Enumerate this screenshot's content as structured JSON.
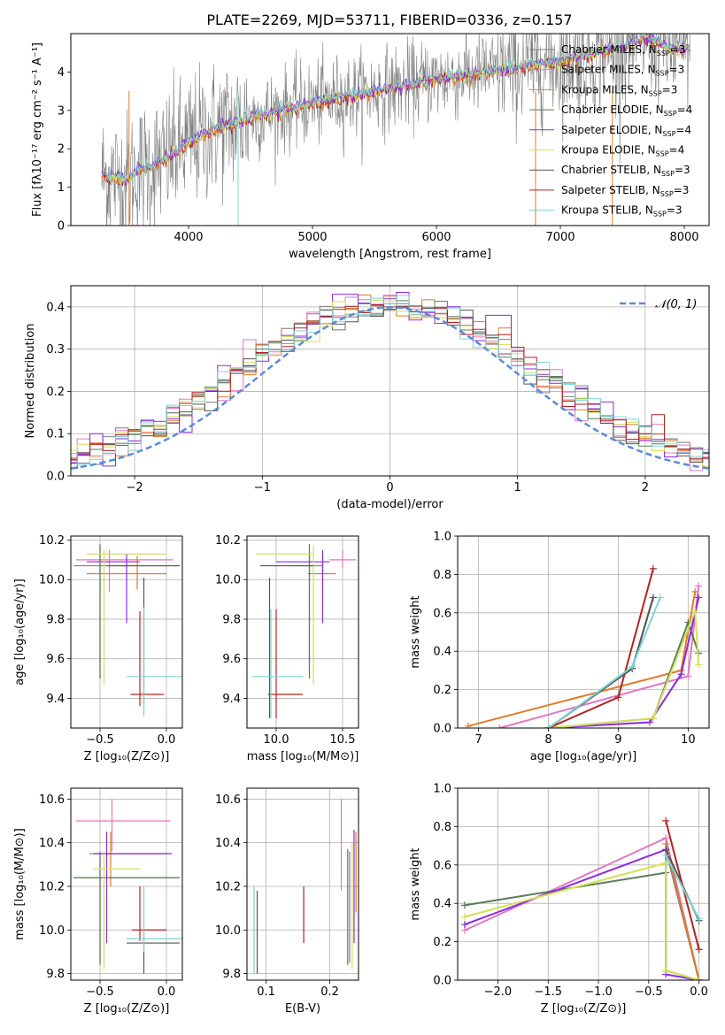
{
  "title": "PLATE=2269, MJD=53711, FIBERID=0336, z=0.157",
  "colors": {
    "chabrier_miles": "#7f7f7f",
    "salpeter_miles": "#e377c2",
    "kroupa_miles": "#e07b28",
    "chabrier_elodie": "#5a7d5a",
    "salpeter_elodie": "#8a2be2",
    "kroupa_elodie": "#d4e157",
    "chabrier_stelib": "#555555",
    "salpeter_stelib": "#b22222",
    "kroupa_stelib": "#7fd3d3",
    "normal_curve": "#5b8bd9"
  },
  "series_labels": [
    "Chabrier MILES, N_SSP=3",
    "Salpeter MILES, N_SSP=3",
    "Kroupa MILES, N_SSP=3",
    "Chabrier ELODIE, N_SSP=4",
    "Salpeter ELODIE, N_SSP=4",
    "Kroupa ELODIE, N_SSP=4",
    "Chabrier STELIB, N_SSP=3",
    "Salpeter STELIB, N_SSP=3",
    "Kroupa STELIB, N_SSP=3"
  ],
  "labels": {
    "spec_x": "wavelength [Angstrom, rest frame]",
    "spec_y": "Flux [fλ10⁻¹⁷ erg cm⁻² s⁻¹ A⁻¹]",
    "hist_x": "(data-model)/error",
    "hist_y": "Normed distribution",
    "hist_legend": "𝒩(0, 1)",
    "age_y": "age  [log₁₀(age/yr)]",
    "z_x": "Z [log₁₀(Z/Z⊙)]",
    "mass_x": "mass [log₁₀(M/M⊙)]",
    "mass_y": "mass [log₁₀(M/M⊙)]",
    "ebv_x": "E(B-V)",
    "mw_y": "mass weight",
    "age_x": "age  [log₁₀(age/yr)]"
  },
  "chart_data": [
    {
      "type": "line",
      "title": "PLATE=2269, MJD=53711, FIBERID=0336, z=0.157",
      "xlabel": "wavelength [Angstrom, rest frame]",
      "ylabel": "Flux [fλ10⁻¹⁷ erg cm⁻² s⁻¹ A⁻¹]",
      "xlim": [
        3050,
        8200
      ],
      "ylim": [
        0,
        5
      ],
      "xticks": [
        4000,
        5000,
        6000,
        7000,
        8000
      ],
      "yticks": [
        0,
        1,
        2,
        3,
        4
      ],
      "continuum": {
        "x": [
          3300,
          3500,
          3600,
          3800,
          4000,
          4200,
          4500,
          5000,
          5500,
          6000,
          6500,
          7000,
          7500,
          7700,
          7900
        ],
        "y": [
          1.3,
          1.2,
          1.45,
          1.7,
          2.15,
          2.5,
          2.8,
          3.2,
          3.5,
          3.8,
          4.05,
          4.3,
          4.65,
          4.9,
          4.6
        ]
      },
      "legend": "upper right"
    },
    {
      "type": "bar",
      "xlabel": "(data-model)/error",
      "ylabel": "Normed distribution",
      "xlim": [
        -2.5,
        2.5
      ],
      "ylim": [
        0,
        0.45
      ],
      "xticks": [
        -2,
        -1,
        0,
        1,
        2
      ],
      "yticks": [
        0.0,
        0.1,
        0.2,
        0.3,
        0.4
      ],
      "bin_width": 0.1,
      "curve": {
        "name": "N(0,1)",
        "mean": 0,
        "sigma": 1
      },
      "legend": "upper right"
    },
    {
      "type": "scatter",
      "name": "age_vs_Z",
      "xlabel": "Z [log10(Z/Zsun)]",
      "ylabel": "age [log10(age/yr)]",
      "xlim": [
        -0.72,
        0.12
      ],
      "ylim": [
        9.25,
        10.22
      ],
      "xticks": [
        -0.5,
        0.0
      ],
      "yticks": [
        9.4,
        9.6,
        9.8,
        10.0,
        10.2
      ],
      "points": [
        {
          "s": 0,
          "x": -0.5,
          "y": 10.07,
          "ex": [
            -0.7,
            0.08
          ],
          "ey": [
            9.5,
            10.18
          ]
        },
        {
          "s": 1,
          "x": -0.43,
          "y": 10.1,
          "ex": [
            -0.68,
            0.05
          ],
          "ey": [
            9.94,
            10.15
          ]
        },
        {
          "s": 2,
          "x": -0.22,
          "y": 10.03,
          "ex": [
            -0.6,
            0.0
          ],
          "ey": [
            9.95,
            10.12
          ]
        },
        {
          "s": 3,
          "x": -0.5,
          "y": 10.07,
          "ex": [
            -0.5,
            -0.5
          ],
          "ey": [
            9.5,
            10.17
          ]
        },
        {
          "s": 4,
          "x": -0.3,
          "y": 10.09,
          "ex": [
            -0.6,
            -0.2
          ],
          "ey": [
            9.78,
            10.13
          ]
        },
        {
          "s": 5,
          "x": -0.47,
          "y": 10.13,
          "ex": [
            -0.6,
            0.0
          ],
          "ey": [
            9.47,
            10.15
          ]
        },
        {
          "s": 6,
          "x": -0.17,
          "y": 10.07,
          "ex": [
            -0.45,
            0.1
          ],
          "ey": [
            9.37,
            10.01
          ]
        },
        {
          "s": 7,
          "x": -0.2,
          "y": 9.42,
          "ex": [
            -0.27,
            -0.02
          ],
          "ey": [
            9.36,
            9.84
          ]
        },
        {
          "s": 8,
          "x": -0.17,
          "y": 9.51,
          "ex": [
            -0.3,
            0.12
          ],
          "ey": [
            9.31,
            9.86
          ]
        }
      ]
    },
    {
      "type": "scatter",
      "name": "age_vs_mass",
      "xlabel": "mass [log10(M/Msun)]",
      "ylabel": "",
      "xlim": [
        9.78,
        10.62
      ],
      "ylim": [
        9.25,
        10.22
      ],
      "xticks": [
        10.0,
        10.5
      ],
      "yticks": [
        9.4,
        9.6,
        9.8,
        10.0,
        10.2
      ],
      "points": [
        {
          "s": 0,
          "x": 10.25,
          "y": 10.07,
          "ex": [
            10.1,
            10.35
          ],
          "ey": [
            9.55,
            10.15
          ]
        },
        {
          "s": 1,
          "x": 10.5,
          "y": 10.1,
          "ex": [
            10.4,
            10.6
          ],
          "ey": [
            10.06,
            10.15
          ]
        },
        {
          "s": 2,
          "x": 10.35,
          "y": 10.03,
          "ex": [
            10.24,
            10.45
          ],
          "ey": [
            9.96,
            10.12
          ]
        },
        {
          "s": 3,
          "x": 10.25,
          "y": 10.07,
          "ex": [
            10.25,
            10.25
          ],
          "ey": [
            9.5,
            10.18
          ]
        },
        {
          "s": 4,
          "x": 10.35,
          "y": 10.09,
          "ex": [
            10.0,
            10.4
          ],
          "ey": [
            9.78,
            10.15
          ]
        },
        {
          "s": 5,
          "x": 10.28,
          "y": 10.13,
          "ex": [
            9.85,
            10.28
          ],
          "ey": [
            9.47,
            10.17
          ]
        },
        {
          "s": 6,
          "x": 9.95,
          "y": 10.07,
          "ex": [
            9.88,
            10.28
          ],
          "ey": [
            9.3,
            10.01
          ]
        },
        {
          "s": 7,
          "x": 10.0,
          "y": 9.42,
          "ex": [
            9.94,
            10.2
          ],
          "ey": [
            9.3,
            9.85
          ]
        },
        {
          "s": 8,
          "x": 9.96,
          "y": 9.51,
          "ex": [
            9.82,
            10.2
          ],
          "ey": [
            9.3,
            9.85
          ]
        }
      ]
    },
    {
      "type": "line",
      "name": "mass_weight_vs_age",
      "xlabel": "age [log10(age/yr)]",
      "ylabel": "mass weight",
      "xlim": [
        6.7,
        10.3
      ],
      "ylim": [
        0,
        1
      ],
      "xticks": [
        7,
        8,
        9,
        10
      ],
      "yticks": [
        0.0,
        0.2,
        0.4,
        0.6,
        0.8,
        1.0
      ],
      "series": [
        {
          "s": 0,
          "x": [
            8.0,
            9.2,
            9.5
          ],
          "y": [
            0.0,
            0.31,
            0.68
          ]
        },
        {
          "s": 1,
          "x": [
            7.3,
            10.0,
            10.15
          ],
          "y": [
            0.0,
            0.27,
            0.74
          ]
        },
        {
          "s": 2,
          "x": [
            6.85,
            9.9,
            10.1
          ],
          "y": [
            0.01,
            0.3,
            0.71
          ]
        },
        {
          "s": 3,
          "x": [
            8.0,
            9.5,
            10.0,
            10.15
          ],
          "y": [
            0.0,
            0.05,
            0.55,
            0.39
          ]
        },
        {
          "s": 4,
          "x": [
            8.0,
            9.45,
            9.9,
            10.15
          ],
          "y": [
            0.0,
            0.03,
            0.28,
            0.68
          ]
        },
        {
          "s": 5,
          "x": [
            8.0,
            9.5,
            10.1,
            10.15
          ],
          "y": [
            0.0,
            0.05,
            0.61,
            0.33
          ]
        },
        {
          "s": 6,
          "x": [
            8.0,
            9.2,
            9.5
          ],
          "y": [
            0.0,
            0.31,
            0.68
          ]
        },
        {
          "s": 7,
          "x": [
            8.0,
            9.0,
            9.5
          ],
          "y": [
            0.0,
            0.16,
            0.83
          ]
        },
        {
          "s": 8,
          "x": [
            8.0,
            9.2,
            9.6
          ],
          "y": [
            0.0,
            0.32,
            0.68
          ]
        }
      ]
    },
    {
      "type": "scatter",
      "name": "mass_vs_Z",
      "xlabel": "Z [log10(Z/Zsun)]",
      "ylabel": "mass [log10(M/Msun)]",
      "xlim": [
        -0.72,
        0.12
      ],
      "ylim": [
        9.77,
        10.65
      ],
      "xticks": [
        -0.5,
        0.0
      ],
      "yticks": [
        9.8,
        10.0,
        10.2,
        10.4,
        10.6
      ],
      "points": [
        {
          "s": 0,
          "x": -0.5,
          "y": 10.24,
          "ex": [
            -0.7,
            0.08
          ],
          "ey": [
            9.85,
            10.36
          ]
        },
        {
          "s": 1,
          "x": -0.41,
          "y": 10.5,
          "ex": [
            -0.68,
            0.03
          ],
          "ey": [
            10.36,
            10.6
          ]
        },
        {
          "s": 2,
          "x": -0.42,
          "y": 10.35,
          "ex": [
            -0.58,
            0.0
          ],
          "ey": [
            10.2,
            10.45
          ]
        },
        {
          "s": 3,
          "x": -0.5,
          "y": 10.24,
          "ex": [
            -0.7,
            0.1
          ],
          "ey": [
            9.84,
            10.35
          ]
        },
        {
          "s": 4,
          "x": -0.45,
          "y": 10.35,
          "ex": [
            -0.55,
            0.04
          ],
          "ey": [
            9.94,
            10.45
          ]
        },
        {
          "s": 5,
          "x": -0.47,
          "y": 10.28,
          "ex": [
            -0.55,
            -0.2
          ],
          "ey": [
            9.82,
            10.36
          ]
        },
        {
          "s": 6,
          "x": -0.17,
          "y": 9.94,
          "ex": [
            -0.3,
            0.1
          ],
          "ey": [
            9.8,
            10.0
          ]
        },
        {
          "s": 7,
          "x": -0.2,
          "y": 10.0,
          "ex": [
            -0.26,
            0.0
          ],
          "ey": [
            9.95,
            10.2
          ]
        },
        {
          "s": 8,
          "x": -0.17,
          "y": 9.96,
          "ex": [
            -0.3,
            0.12
          ],
          "ey": [
            9.9,
            10.2
          ]
        }
      ]
    },
    {
      "type": "scatter",
      "name": "mass_vs_EBV",
      "xlabel": "E(B-V)",
      "ylabel": "",
      "xlim": [
        0.07,
        0.245
      ],
      "ylim": [
        9.77,
        10.65
      ],
      "xticks": [
        0.1,
        0.2
      ],
      "yticks": [
        9.8,
        10.0,
        10.2,
        10.4,
        10.6
      ],
      "points": [
        {
          "s": 0,
          "x": 0.231,
          "y": 10.24,
          "ey": [
            9.85,
            10.36
          ]
        },
        {
          "s": 1,
          "x": 0.218,
          "y": 10.5,
          "ey": [
            10.18,
            10.6
          ]
        },
        {
          "s": 2,
          "x": 0.241,
          "y": 10.35,
          "ey": [
            10.08,
            10.45
          ]
        },
        {
          "s": 3,
          "x": 0.228,
          "y": 10.24,
          "ey": [
            9.84,
            10.37
          ]
        },
        {
          "s": 4,
          "x": 0.238,
          "y": 10.35,
          "ey": [
            9.94,
            10.46
          ]
        },
        {
          "s": 5,
          "x": 0.235,
          "y": 10.28,
          "ey": [
            9.82,
            10.4
          ]
        },
        {
          "s": 6,
          "x": 0.086,
          "y": 9.94,
          "ey": [
            9.8,
            10.18
          ]
        },
        {
          "s": 7,
          "x": 0.159,
          "y": 10.0,
          "ey": [
            9.94,
            10.2
          ]
        },
        {
          "s": 8,
          "x": 0.081,
          "y": 9.96,
          "ey": [
            9.8,
            10.2
          ]
        }
      ]
    },
    {
      "type": "line",
      "name": "mass_weight_vs_Z",
      "xlabel": "Z [log10(Z/Zsun)]",
      "ylabel": "mass weight",
      "xlim": [
        -2.4,
        0.1
      ],
      "ylim": [
        0,
        1
      ],
      "xticks": [
        -2.0,
        -1.5,
        -1.0,
        -0.5,
        0.0
      ],
      "yticks": [
        0.0,
        0.2,
        0.4,
        0.6,
        0.8,
        1.0
      ],
      "series": [
        {
          "s": 0,
          "x": [
            -0.33,
            0.0
          ],
          "y": [
            0.68,
            0.0
          ]
        },
        {
          "s": 1,
          "x": [
            -2.33,
            -0.33,
            0.0
          ],
          "y": [
            0.26,
            0.74,
            0.0
          ]
        },
        {
          "s": 2,
          "x": [
            -0.33,
            0.0
          ],
          "y": [
            0.71,
            0.0
          ]
        },
        {
          "s": 3,
          "x": [
            -2.33,
            -0.33,
            -0.33,
            0.0
          ],
          "y": [
            0.39,
            0.56,
            0.05,
            0.0
          ]
        },
        {
          "s": 4,
          "x": [
            -2.33,
            -0.33,
            -0.33,
            0.0
          ],
          "y": [
            0.29,
            0.68,
            0.03,
            0.0
          ]
        },
        {
          "s": 5,
          "x": [
            -2.33,
            -0.33,
            -0.33,
            0.0
          ],
          "y": [
            0.33,
            0.61,
            0.05,
            0.0
          ]
        },
        {
          "s": 6,
          "x": [
            -0.33,
            0.0
          ],
          "y": [
            0.68,
            0.31
          ]
        },
        {
          "s": 7,
          "x": [
            -0.33,
            0.0
          ],
          "y": [
            0.83,
            0.16
          ]
        },
        {
          "s": 8,
          "x": [
            -0.33,
            0.0
          ],
          "y": [
            0.65,
            0.32
          ]
        }
      ]
    }
  ]
}
